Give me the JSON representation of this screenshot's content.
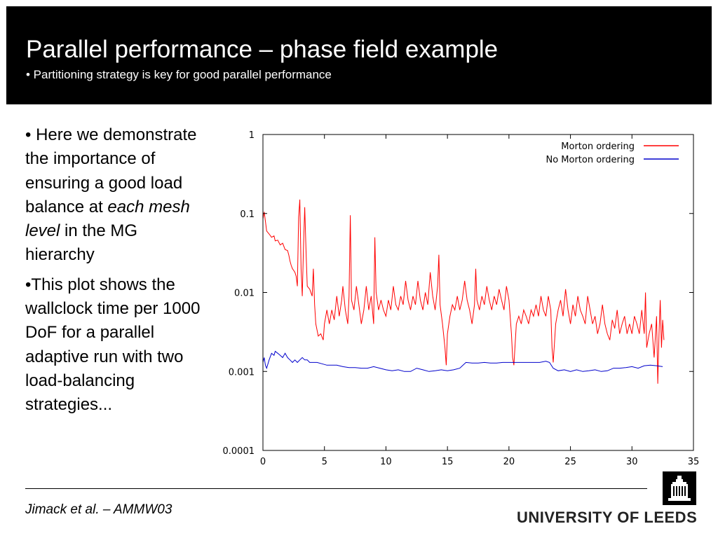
{
  "header": {
    "title": "Parallel performance – phase field example",
    "subtitle": "• Partitioning strategy is key for good parallel performance"
  },
  "body": {
    "bullet1_prefix": "• Here we demonstrate the importance of ensuring a good load balance at ",
    "bullet1_emphasis": "each mesh level",
    "bullet1_suffix": " in the MG hierarchy",
    "bullet2": "•This plot shows the wallclock time per 1000 DoF for a parallel adaptive run with two load-balancing strategies..."
  },
  "footer": {
    "credit_prefix": "Jimack et al",
    "credit_suffix": ". – AMMW03",
    "university": "UNIVERSITY OF LEEDS"
  },
  "chart_data": {
    "type": "line",
    "xlim": [
      0,
      35
    ],
    "ylim": [
      0.0001,
      1
    ],
    "y_scale": "log",
    "x_ticks": [
      0,
      5,
      10,
      15,
      20,
      25,
      30,
      35
    ],
    "y_ticks": [
      {
        "value": 1,
        "label": "1"
      },
      {
        "value": 0.1,
        "label": "0.1"
      },
      {
        "value": 0.01,
        "label": "0.01"
      },
      {
        "value": 0.001,
        "label": "0.001"
      },
      {
        "value": 0.0001,
        "label": "0.0001"
      }
    ],
    "grid": false,
    "legend_position": "top-right",
    "series": [
      {
        "name": "Morton ordering",
        "color": "#ff0000",
        "points": [
          [
            0.0,
            0.085
          ],
          [
            0.1,
            0.105
          ],
          [
            0.2,
            0.08
          ],
          [
            0.3,
            0.06
          ],
          [
            0.5,
            0.055
          ],
          [
            0.7,
            0.05
          ],
          [
            0.9,
            0.052
          ],
          [
            1.0,
            0.045
          ],
          [
            1.2,
            0.046
          ],
          [
            1.4,
            0.04
          ],
          [
            1.6,
            0.042
          ],
          [
            1.8,
            0.035
          ],
          [
            2.0,
            0.034
          ],
          [
            2.1,
            0.03
          ],
          [
            2.2,
            0.025
          ],
          [
            2.3,
            0.022
          ],
          [
            2.4,
            0.02
          ],
          [
            2.5,
            0.019
          ],
          [
            2.6,
            0.018
          ],
          [
            2.7,
            0.016
          ],
          [
            2.8,
            0.012
          ],
          [
            2.9,
            0.09
          ],
          [
            3.0,
            0.15
          ],
          [
            3.1,
            0.02
          ],
          [
            3.2,
            0.009
          ],
          [
            3.3,
            0.04
          ],
          [
            3.4,
            0.12
          ],
          [
            3.5,
            0.035
          ],
          [
            3.6,
            0.012
          ],
          [
            3.8,
            0.011
          ],
          [
            4.0,
            0.009
          ],
          [
            4.1,
            0.02
          ],
          [
            4.2,
            0.007
          ],
          [
            4.3,
            0.004
          ],
          [
            4.5,
            0.0028
          ],
          [
            4.7,
            0.003
          ],
          [
            4.9,
            0.0025
          ],
          [
            5.0,
            0.004
          ],
          [
            5.2,
            0.006
          ],
          [
            5.4,
            0.004
          ],
          [
            5.6,
            0.006
          ],
          [
            5.8,
            0.0045
          ],
          [
            6.0,
            0.009
          ],
          [
            6.2,
            0.005
          ],
          [
            6.4,
            0.008
          ],
          [
            6.5,
            0.012
          ],
          [
            6.7,
            0.006
          ],
          [
            6.9,
            0.004
          ],
          [
            7.0,
            0.009
          ],
          [
            7.1,
            0.095
          ],
          [
            7.2,
            0.008
          ],
          [
            7.4,
            0.006
          ],
          [
            7.6,
            0.012
          ],
          [
            7.8,
            0.007
          ],
          [
            8.0,
            0.004
          ],
          [
            8.2,
            0.006
          ],
          [
            8.4,
            0.012
          ],
          [
            8.6,
            0.006
          ],
          [
            8.8,
            0.009
          ],
          [
            9.0,
            0.004
          ],
          [
            9.1,
            0.05
          ],
          [
            9.2,
            0.01
          ],
          [
            9.4,
            0.006
          ],
          [
            9.6,
            0.008
          ],
          [
            9.8,
            0.006
          ],
          [
            10.0,
            0.005
          ],
          [
            10.2,
            0.008
          ],
          [
            10.4,
            0.006
          ],
          [
            10.6,
            0.012
          ],
          [
            10.8,
            0.007
          ],
          [
            11.0,
            0.006
          ],
          [
            11.2,
            0.009
          ],
          [
            11.4,
            0.007
          ],
          [
            11.6,
            0.014
          ],
          [
            11.8,
            0.008
          ],
          [
            12.0,
            0.006
          ],
          [
            12.2,
            0.009
          ],
          [
            12.4,
            0.007
          ],
          [
            12.6,
            0.014
          ],
          [
            12.8,
            0.008
          ],
          [
            13.0,
            0.006
          ],
          [
            13.2,
            0.01
          ],
          [
            13.4,
            0.007
          ],
          [
            13.6,
            0.018
          ],
          [
            13.8,
            0.009
          ],
          [
            14.0,
            0.006
          ],
          [
            14.2,
            0.012
          ],
          [
            14.3,
            0.03
          ],
          [
            14.4,
            0.007
          ],
          [
            14.6,
            0.004
          ],
          [
            14.8,
            0.002
          ],
          [
            14.9,
            0.0012
          ],
          [
            15.0,
            0.003
          ],
          [
            15.2,
            0.005
          ],
          [
            15.4,
            0.007
          ],
          [
            15.6,
            0.006
          ],
          [
            15.8,
            0.009
          ],
          [
            16.0,
            0.006
          ],
          [
            16.2,
            0.008
          ],
          [
            16.4,
            0.014
          ],
          [
            16.6,
            0.008
          ],
          [
            16.8,
            0.006
          ],
          [
            17.0,
            0.004
          ],
          [
            17.2,
            0.007
          ],
          [
            17.3,
            0.02
          ],
          [
            17.4,
            0.008
          ],
          [
            17.6,
            0.006
          ],
          [
            17.8,
            0.009
          ],
          [
            18.0,
            0.007
          ],
          [
            18.2,
            0.012
          ],
          [
            18.4,
            0.008
          ],
          [
            18.6,
            0.006
          ],
          [
            18.8,
            0.009
          ],
          [
            19.0,
            0.007
          ],
          [
            19.2,
            0.011
          ],
          [
            19.4,
            0.008
          ],
          [
            19.6,
            0.006
          ],
          [
            19.8,
            0.012
          ],
          [
            20.0,
            0.008
          ],
          [
            20.2,
            0.003
          ],
          [
            20.3,
            0.0015
          ],
          [
            20.4,
            0.0012
          ],
          [
            20.6,
            0.004
          ],
          [
            20.8,
            0.005
          ],
          [
            21.0,
            0.004
          ],
          [
            21.2,
            0.006
          ],
          [
            21.4,
            0.005
          ],
          [
            21.6,
            0.004
          ],
          [
            21.8,
            0.006
          ],
          [
            22.0,
            0.005
          ],
          [
            22.2,
            0.007
          ],
          [
            22.4,
            0.005
          ],
          [
            22.6,
            0.009
          ],
          [
            22.8,
            0.006
          ],
          [
            23.0,
            0.005
          ],
          [
            23.2,
            0.009
          ],
          [
            23.4,
            0.006
          ],
          [
            23.5,
            0.002
          ],
          [
            23.6,
            0.0013
          ],
          [
            23.8,
            0.004
          ],
          [
            24.0,
            0.006
          ],
          [
            24.2,
            0.008
          ],
          [
            24.4,
            0.005
          ],
          [
            24.6,
            0.011
          ],
          [
            24.8,
            0.006
          ],
          [
            25.0,
            0.004
          ],
          [
            25.2,
            0.007
          ],
          [
            25.4,
            0.005
          ],
          [
            25.6,
            0.009
          ],
          [
            25.8,
            0.006
          ],
          [
            26.0,
            0.005
          ],
          [
            26.2,
            0.004
          ],
          [
            26.4,
            0.009
          ],
          [
            26.6,
            0.006
          ],
          [
            26.8,
            0.004
          ],
          [
            27.0,
            0.005
          ],
          [
            27.2,
            0.003
          ],
          [
            27.4,
            0.004
          ],
          [
            27.6,
            0.007
          ],
          [
            27.8,
            0.004
          ],
          [
            28.0,
            0.003
          ],
          [
            28.2,
            0.0025
          ],
          [
            28.4,
            0.0045
          ],
          [
            28.6,
            0.0035
          ],
          [
            28.8,
            0.006
          ],
          [
            29.0,
            0.003
          ],
          [
            29.2,
            0.004
          ],
          [
            29.4,
            0.005
          ],
          [
            29.6,
            0.003
          ],
          [
            29.8,
            0.004
          ],
          [
            30.0,
            0.003
          ],
          [
            30.2,
            0.005
          ],
          [
            30.4,
            0.004
          ],
          [
            30.6,
            0.003
          ],
          [
            30.8,
            0.006
          ],
          [
            31.0,
            0.003
          ],
          [
            31.1,
            0.01
          ],
          [
            31.2,
            0.002
          ],
          [
            31.4,
            0.003
          ],
          [
            31.6,
            0.004
          ],
          [
            31.8,
            0.0015
          ],
          [
            32.0,
            0.005
          ],
          [
            32.1,
            0.0007
          ],
          [
            32.2,
            0.003
          ],
          [
            32.3,
            0.008
          ],
          [
            32.4,
            0.002
          ],
          [
            32.5,
            0.0045
          ],
          [
            32.6,
            0.0025
          ]
        ]
      },
      {
        "name": "No Morton ordering",
        "color": "#0000cc",
        "points": [
          [
            0.0,
            0.0013
          ],
          [
            0.1,
            0.0015
          ],
          [
            0.2,
            0.0012
          ],
          [
            0.3,
            0.0011
          ],
          [
            0.5,
            0.0014
          ],
          [
            0.7,
            0.0017
          ],
          [
            0.9,
            0.0016
          ],
          [
            1.0,
            0.0018
          ],
          [
            1.2,
            0.0017
          ],
          [
            1.4,
            0.0016
          ],
          [
            1.6,
            0.0015
          ],
          [
            1.8,
            0.0017
          ],
          [
            2.0,
            0.0015
          ],
          [
            2.2,
            0.0014
          ],
          [
            2.4,
            0.0013
          ],
          [
            2.6,
            0.0014
          ],
          [
            2.8,
            0.0013
          ],
          [
            3.0,
            0.0014
          ],
          [
            3.2,
            0.0015
          ],
          [
            3.4,
            0.0014
          ],
          [
            3.6,
            0.0014
          ],
          [
            3.8,
            0.0013
          ],
          [
            4.0,
            0.0013
          ],
          [
            4.4,
            0.0013
          ],
          [
            4.8,
            0.00125
          ],
          [
            5.2,
            0.0012
          ],
          [
            5.6,
            0.0012
          ],
          [
            6.0,
            0.0012
          ],
          [
            6.5,
            0.00115
          ],
          [
            7.0,
            0.00112
          ],
          [
            7.5,
            0.00112
          ],
          [
            8.0,
            0.0011
          ],
          [
            8.5,
            0.0011
          ],
          [
            9.0,
            0.00115
          ],
          [
            9.5,
            0.0011
          ],
          [
            10.0,
            0.00105
          ],
          [
            10.5,
            0.00102
          ],
          [
            11.0,
            0.00105
          ],
          [
            11.5,
            0.001
          ],
          [
            12.0,
            0.001
          ],
          [
            12.5,
            0.0011
          ],
          [
            13.0,
            0.00105
          ],
          [
            13.5,
            0.001
          ],
          [
            14.0,
            0.00102
          ],
          [
            14.5,
            0.00105
          ],
          [
            15.0,
            0.00102
          ],
          [
            15.5,
            0.00105
          ],
          [
            16.0,
            0.0011
          ],
          [
            16.5,
            0.0013
          ],
          [
            17.0,
            0.00128
          ],
          [
            17.5,
            0.00128
          ],
          [
            18.0,
            0.0013
          ],
          [
            18.5,
            0.00128
          ],
          [
            19.0,
            0.00128
          ],
          [
            19.5,
            0.0013
          ],
          [
            20.0,
            0.0013
          ],
          [
            20.5,
            0.0013
          ],
          [
            21.0,
            0.0013
          ],
          [
            21.5,
            0.0013
          ],
          [
            22.0,
            0.0013
          ],
          [
            22.5,
            0.0013
          ],
          [
            23.0,
            0.00135
          ],
          [
            23.3,
            0.0013
          ],
          [
            23.6,
            0.0011
          ],
          [
            24.0,
            0.00102
          ],
          [
            24.5,
            0.00105
          ],
          [
            25.0,
            0.001
          ],
          [
            25.5,
            0.00105
          ],
          [
            26.0,
            0.001
          ],
          [
            26.5,
            0.00102
          ],
          [
            27.0,
            0.00105
          ],
          [
            27.5,
            0.001
          ],
          [
            28.0,
            0.00102
          ],
          [
            28.5,
            0.0011
          ],
          [
            29.0,
            0.0011
          ],
          [
            29.5,
            0.00112
          ],
          [
            30.0,
            0.00115
          ],
          [
            30.5,
            0.0011
          ],
          [
            31.0,
            0.00118
          ],
          [
            31.5,
            0.0012
          ],
          [
            32.0,
            0.00118
          ],
          [
            32.5,
            0.00115
          ]
        ]
      }
    ]
  }
}
